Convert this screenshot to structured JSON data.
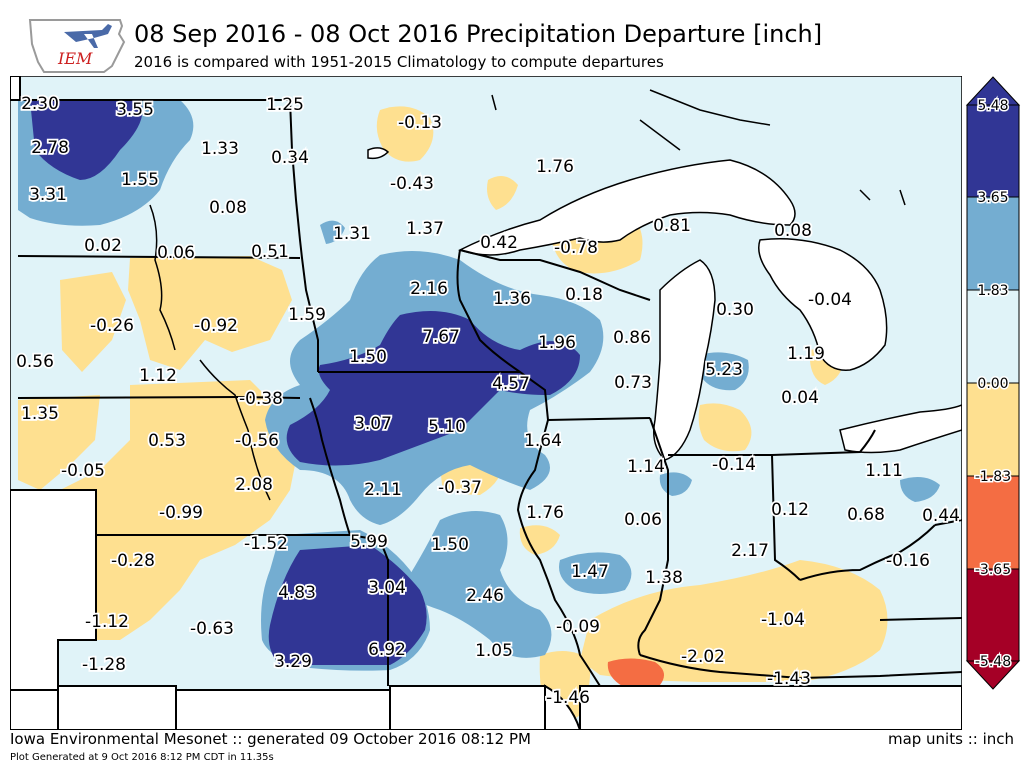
{
  "header": {
    "title": "08 Sep 2016 - 08 Oct 2016 Precipitation Departure [inch]",
    "subtitle": "2016 is compared with 1951-2015 Climatology to compute departures",
    "logo_text": "IEM"
  },
  "footer": {
    "left": "Iowa Environmental Mesonet :: generated 09 October 2016 08:12 PM",
    "right": "map units :: inch",
    "small": "Plot Generated at 9 Oct 2016 8:12 PM CDT in 11.35s"
  },
  "colors": {
    "level_n548": "#a50026",
    "level_n365": "#f46d43",
    "level_n183": "#fee090",
    "level_0": "#e0f3f8",
    "level_183": "#74add1",
    "level_365": "#313695",
    "lake": "#ffffff",
    "outside": "#ffffff"
  },
  "colorbar": {
    "ticks": [
      "5.48",
      "3.65",
      "1.83",
      "0.00",
      "-1.83",
      "-3.65",
      "-5.48"
    ]
  },
  "values": [
    "2.30",
    "3.55",
    "1.25",
    "-0.13",
    "2.78",
    "1.33",
    "0.34",
    "-0.43",
    "1.76",
    "3.31",
    "1.55",
    "0.08",
    "1.31",
    "1.37",
    "0.02",
    "0.06",
    "0.51",
    "0.42",
    "-0.78",
    "0.81",
    "0.08",
    "2.16",
    "1.36",
    "0.18",
    "-0.26",
    "-0.92",
    "1.59",
    "7.67",
    "1.96",
    "0.86",
    "0.30",
    "-0.04",
    "0.56",
    "1.12",
    "1.50",
    "4.57",
    "0.73",
    "5.23",
    "1.19",
    "1.35",
    "-0.38",
    "3.07",
    "5.10",
    "1.64",
    "0.04",
    "0.53",
    "-0.56",
    "1.14",
    "-0.14",
    "-0.05",
    "2.08",
    "2.11",
    "-0.37",
    "1.11",
    "-0.99",
    "1.76",
    "0.06",
    "0.12",
    "0.68",
    "0.44",
    "-1.52",
    "5.99",
    "1.50",
    "2.17",
    "-0.28",
    "1.47",
    "1.38",
    "-0.16",
    "4.83",
    "3.04",
    "2.46",
    "-1.12",
    "-0.63",
    "-0.09",
    "-1.04",
    "-2.02",
    "3.29",
    "6.92",
    "1.05",
    "-1.28",
    "-1.43",
    "-1.46"
  ]
}
